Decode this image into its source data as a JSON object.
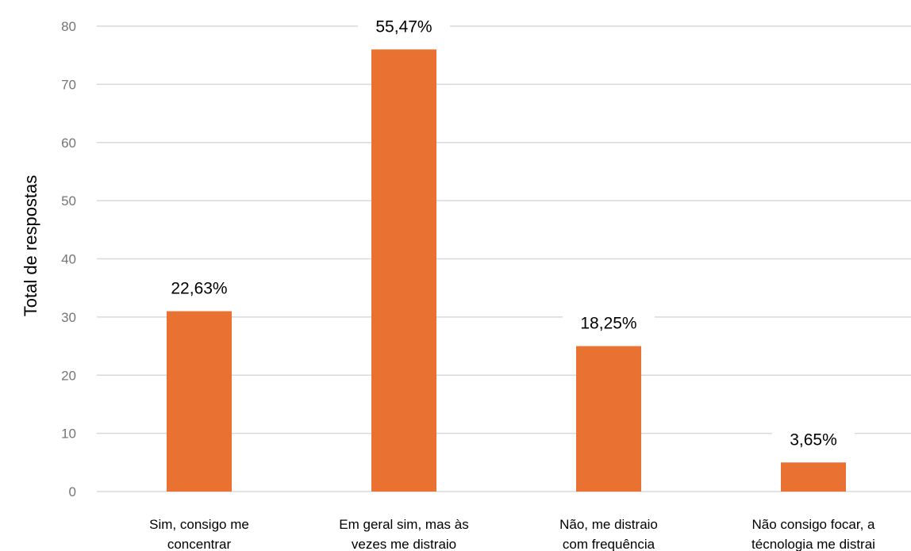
{
  "chart_data": {
    "type": "bar",
    "title": "",
    "xlabel": "",
    "ylabel": "Total de respostas",
    "ylim": [
      0,
      80
    ],
    "yticks": [
      0,
      10,
      20,
      30,
      40,
      50,
      60,
      70,
      80
    ],
    "grid": true,
    "legend": "none",
    "categories": [
      [
        "Sim, consigo me",
        "concentrar"
      ],
      [
        "Em geral sim, mas às",
        "vezes me distraio"
      ],
      [
        "Não, me distraio",
        "com frequência"
      ],
      [
        "Não consigo focar, a",
        "técnologia me distrai"
      ]
    ],
    "values": [
      31,
      76,
      25,
      5
    ],
    "data_labels": [
      "22,63%",
      "55,47%",
      "18,25%",
      "3,65%"
    ],
    "colors": {
      "bar": "#E97132",
      "grid": "#D9D9D9",
      "tick": "#757575",
      "text": "#000000"
    }
  }
}
